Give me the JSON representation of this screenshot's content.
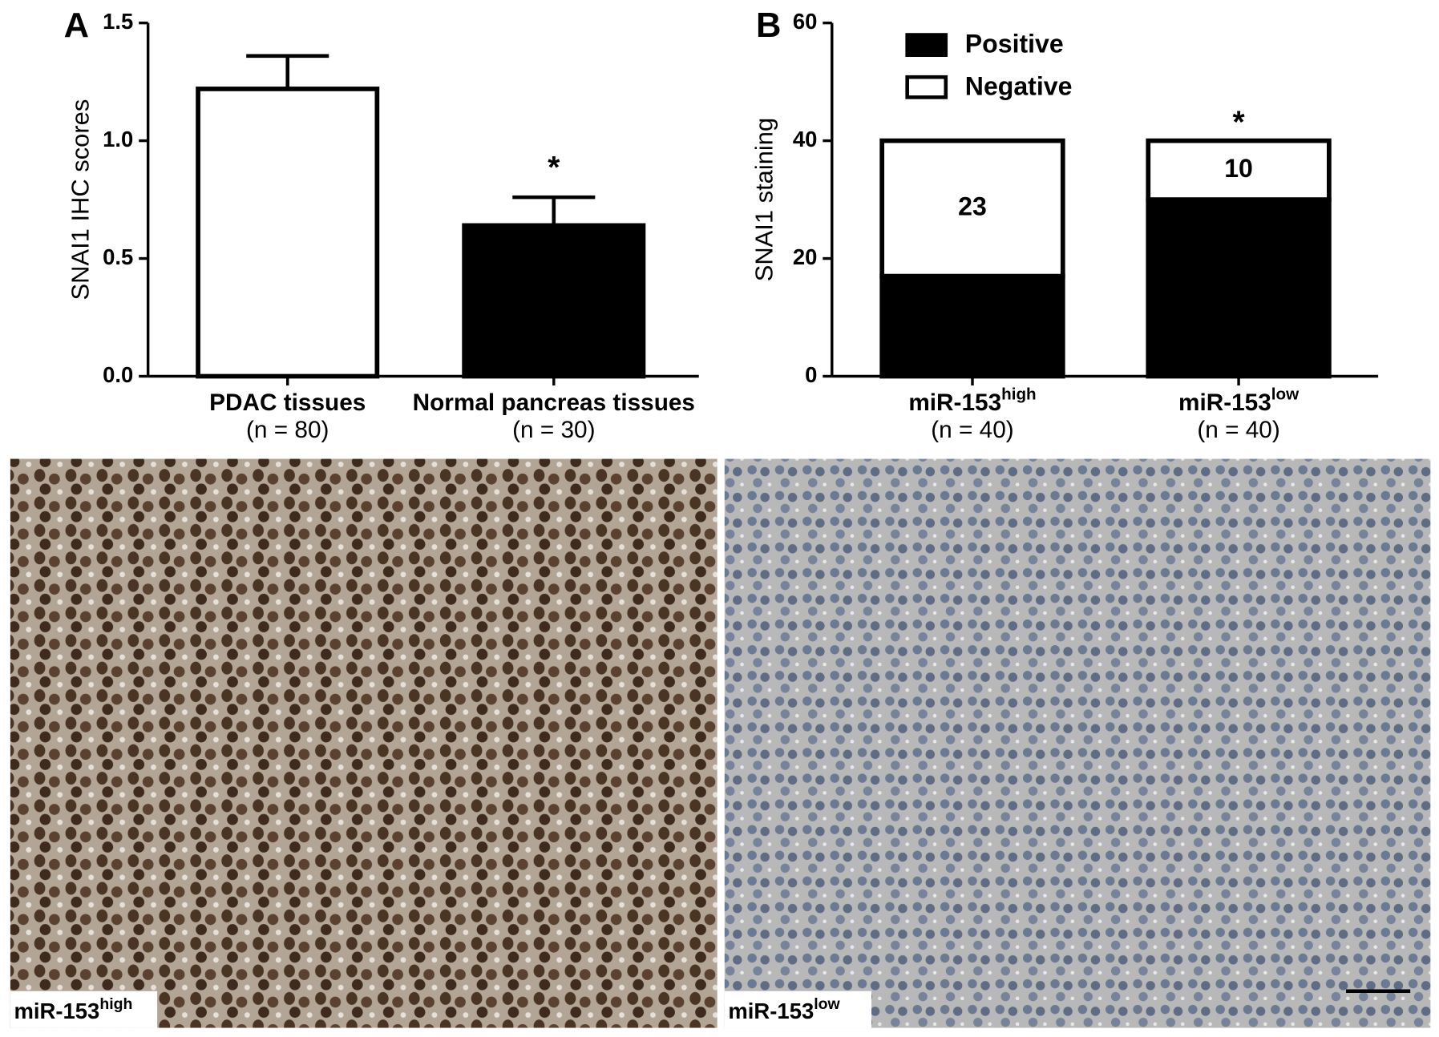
{
  "chart_data": [
    {
      "type": "bar",
      "panel_label": "A",
      "y_label": "SNAI1 IHC scores",
      "categories": [
        "PDAC tissues",
        "Normal pancreas tissues"
      ],
      "category_notes": [
        "(n = 80)",
        "(n = 30)"
      ],
      "values": [
        1.22,
        0.64
      ],
      "errors": [
        0.14,
        0.12
      ],
      "colors": [
        "#ffffff",
        "#000000"
      ],
      "annotations": [
        "*"
      ],
      "ylim": [
        0,
        1.5
      ],
      "yticks": [
        {
          "value": 0,
          "label": "0.0"
        },
        {
          "value": 0.5,
          "label": "0.5"
        },
        {
          "value": 1,
          "label": "1.0"
        },
        {
          "value": 1.5,
          "label": "1.5"
        }
      ]
    },
    {
      "type": "stacked_bar",
      "panel_label": "B",
      "y_label": "SNAI1 staining",
      "categories": [
        "miR-153",
        "miR-153"
      ],
      "category_superscripts": [
        "high",
        "low"
      ],
      "category_notes": [
        "(n = 40)",
        "(n = 40)"
      ],
      "series": [
        {
          "name": "Positive",
          "color": "#000000",
          "values": [
            17,
            30
          ]
        },
        {
          "name": "Negative",
          "color": "#ffffff",
          "values": [
            23,
            10
          ]
        }
      ],
      "annotations": [
        "*"
      ],
      "legend": "top-left",
      "ylim": [
        0,
        60
      ],
      "yticks": [
        0,
        20,
        40,
        60
      ]
    }
  ],
  "images": [
    {
      "label": "miR-153",
      "superscript": "high"
    },
    {
      "label": "miR-153",
      "superscript": "low"
    }
  ]
}
